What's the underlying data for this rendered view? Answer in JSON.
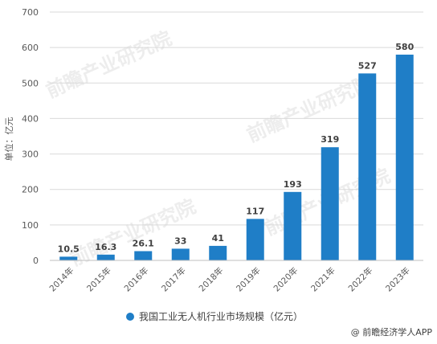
{
  "chart_data": {
    "type": "bar",
    "categories": [
      "2014年",
      "2015年",
      "2016年",
      "2017年",
      "2018年",
      "2019年",
      "2020年",
      "2021年",
      "2022年",
      "2023年"
    ],
    "series": [
      {
        "name": "我国工业无人机行业市场规模（亿元）",
        "values": [
          10.5,
          16.3,
          26.1,
          33,
          41,
          117,
          193,
          319,
          527,
          580
        ],
        "color": "#1f7ec7"
      }
    ],
    "data_labels": [
      "10.5",
      "16.3",
      "26.1",
      "33",
      "41",
      "117",
      "193",
      "319",
      "527",
      "580"
    ],
    "ylabel": "单位：亿元",
    "ylim": [
      0,
      700
    ],
    "yticks": [
      0,
      100,
      200,
      300,
      400,
      500,
      600,
      700
    ],
    "grid": true,
    "legend": "bottom-center"
  },
  "watermark": {
    "text": "前瞻产业研究院",
    "color": "#d9d9d9"
  },
  "source": "@ 前瞻经济学人APP",
  "colors": {
    "bar": "#1f7ec7",
    "grid": "#d9d9d9",
    "text": "#595959"
  }
}
